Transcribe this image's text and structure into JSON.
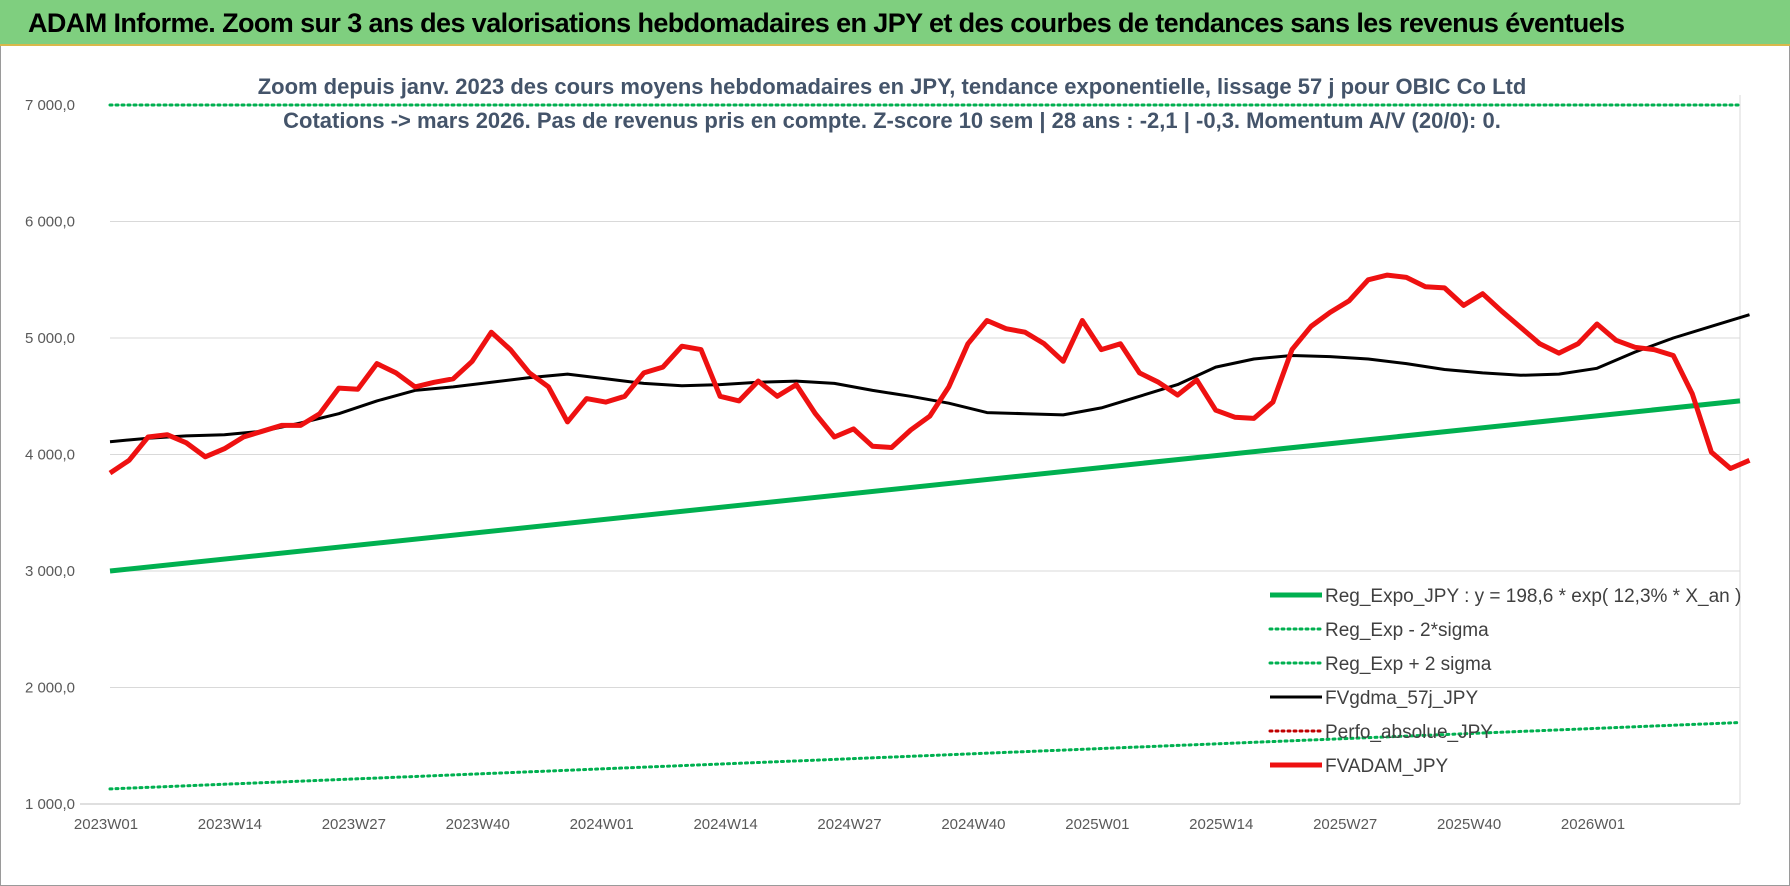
{
  "banner": {
    "title": "ADAM Informe. Zoom sur 3 ans des valorisations hebdomadaires en JPY et des courbes de tendances sans les revenus éventuels"
  },
  "chart_data": {
    "type": "line",
    "title": "",
    "subtitle_lines": [
      "Zoom depuis janv. 2023 des cours moyens hebdomadaires en JPY, tendance exponentielle, lissage 57 j pour OBIC Co Ltd",
      "Cotations -> mars 2026. Pas de revenus pris en compte. Z-score 10 sem | 28 ans : -2,1 | -0,3. Momentum A/V (20/0): 0."
    ],
    "xlabel": "",
    "ylabel": "",
    "ylim": [
      1000,
      7000
    ],
    "y_ticks": [
      "1 000,0",
      "2 000,0",
      "3 000,0",
      "4 000,0",
      "5 000,0",
      "6 000,0",
      "7 000,0"
    ],
    "x_tick_labels": [
      "2023W01",
      "2023W14",
      "2023W27",
      "2023W40",
      "2024W01",
      "2024W14",
      "2024W27",
      "2024W40",
      "2025W01",
      "2025W14",
      "2025W27",
      "2025W40",
      "2026W01"
    ],
    "x_tick_weeks": [
      0,
      13,
      26,
      39,
      52,
      65,
      78,
      91,
      104,
      117,
      130,
      143,
      156
    ],
    "x_range_weeks": [
      0,
      171
    ],
    "grid": "horizontal",
    "legend_position": "bottom-right",
    "series": [
      {
        "name": "Reg_Expo_JPY : y = 198,6 * exp( 12,3% *  X_an )",
        "style": "solid-thick",
        "color": "#00b050",
        "start": 3000,
        "end": 4460
      },
      {
        "name": "Reg_Exp - 2*sigma",
        "style": "dotted",
        "color": "#00b050",
        "start": 1130,
        "end": 1700
      },
      {
        "name": "Reg_Exp + 2 sigma",
        "style": "dotted",
        "color": "#00b050",
        "start": 7000,
        "end": 7000
      },
      {
        "name": "FVgdma_57j_JPY",
        "style": "solid",
        "color": "#000000",
        "points": [
          [
            0,
            4110
          ],
          [
            4,
            4140
          ],
          [
            8,
            4160
          ],
          [
            12,
            4170
          ],
          [
            16,
            4200
          ],
          [
            20,
            4270
          ],
          [
            24,
            4350
          ],
          [
            28,
            4460
          ],
          [
            32,
            4550
          ],
          [
            36,
            4580
          ],
          [
            40,
            4620
          ],
          [
            44,
            4660
          ],
          [
            48,
            4690
          ],
          [
            52,
            4650
          ],
          [
            56,
            4610
          ],
          [
            60,
            4590
          ],
          [
            64,
            4600
          ],
          [
            68,
            4620
          ],
          [
            72,
            4630
          ],
          [
            76,
            4610
          ],
          [
            80,
            4550
          ],
          [
            84,
            4500
          ],
          [
            88,
            4440
          ],
          [
            92,
            4360
          ],
          [
            96,
            4350
          ],
          [
            100,
            4340
          ],
          [
            104,
            4400
          ],
          [
            108,
            4500
          ],
          [
            112,
            4600
          ],
          [
            116,
            4750
          ],
          [
            120,
            4820
          ],
          [
            124,
            4850
          ],
          [
            128,
            4840
          ],
          [
            132,
            4820
          ],
          [
            136,
            4780
          ],
          [
            140,
            4730
          ],
          [
            144,
            4700
          ],
          [
            148,
            4680
          ],
          [
            152,
            4690
          ],
          [
            156,
            4740
          ],
          [
            160,
            4880
          ],
          [
            164,
            5000
          ],
          [
            168,
            5100
          ],
          [
            172,
            5200
          ]
        ]
      },
      {
        "name": "Perfo_absolue_JPY",
        "style": "dotted",
        "color": "#c00000"
      },
      {
        "name": "FVADAM_JPY",
        "style": "solid-thick",
        "color": "#ee1111",
        "points": [
          [
            0,
            3840
          ],
          [
            2,
            3950
          ],
          [
            4,
            4150
          ],
          [
            6,
            4170
          ],
          [
            8,
            4100
          ],
          [
            10,
            3980
          ],
          [
            12,
            4050
          ],
          [
            14,
            4150
          ],
          [
            16,
            4200
          ],
          [
            18,
            4250
          ],
          [
            20,
            4250
          ],
          [
            22,
            4350
          ],
          [
            24,
            4570
          ],
          [
            26,
            4560
          ],
          [
            28,
            4780
          ],
          [
            30,
            4700
          ],
          [
            32,
            4580
          ],
          [
            34,
            4620
          ],
          [
            36,
            4650
          ],
          [
            38,
            4800
          ],
          [
            40,
            5050
          ],
          [
            42,
            4900
          ],
          [
            44,
            4700
          ],
          [
            46,
            4580
          ],
          [
            48,
            4280
          ],
          [
            50,
            4480
          ],
          [
            52,
            4450
          ],
          [
            54,
            4500
          ],
          [
            56,
            4700
          ],
          [
            58,
            4750
          ],
          [
            60,
            4930
          ],
          [
            62,
            4900
          ],
          [
            64,
            4500
          ],
          [
            66,
            4460
          ],
          [
            68,
            4630
          ],
          [
            70,
            4500
          ],
          [
            72,
            4600
          ],
          [
            74,
            4350
          ],
          [
            76,
            4150
          ],
          [
            78,
            4220
          ],
          [
            80,
            4070
          ],
          [
            82,
            4060
          ],
          [
            84,
            4210
          ],
          [
            86,
            4330
          ],
          [
            88,
            4580
          ],
          [
            90,
            4950
          ],
          [
            92,
            5150
          ],
          [
            94,
            5080
          ],
          [
            96,
            5050
          ],
          [
            98,
            4950
          ],
          [
            100,
            4800
          ],
          [
            102,
            5150
          ],
          [
            104,
            4900
          ],
          [
            106,
            4950
          ],
          [
            108,
            4700
          ],
          [
            110,
            4620
          ],
          [
            112,
            4510
          ],
          [
            114,
            4640
          ],
          [
            116,
            4380
          ],
          [
            118,
            4320
          ],
          [
            120,
            4310
          ],
          [
            122,
            4450
          ],
          [
            124,
            4900
          ],
          [
            126,
            5100
          ],
          [
            128,
            5220
          ],
          [
            130,
            5320
          ],
          [
            132,
            5500
          ],
          [
            134,
            5540
          ],
          [
            136,
            5520
          ],
          [
            138,
            5440
          ],
          [
            140,
            5430
          ],
          [
            142,
            5280
          ],
          [
            144,
            5380
          ],
          [
            146,
            5230
          ],
          [
            148,
            5090
          ],
          [
            150,
            4950
          ],
          [
            152,
            4870
          ],
          [
            154,
            4950
          ],
          [
            156,
            5120
          ],
          [
            158,
            4980
          ],
          [
            160,
            4920
          ],
          [
            162,
            4900
          ],
          [
            164,
            4850
          ],
          [
            166,
            4520
          ],
          [
            168,
            4020
          ],
          [
            170,
            3880
          ],
          [
            172,
            3950
          ]
        ]
      }
    ]
  }
}
